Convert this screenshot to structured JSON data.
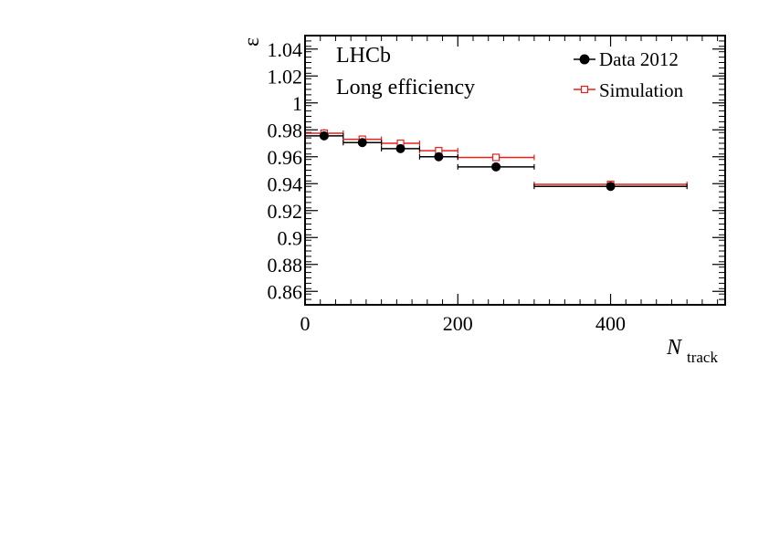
{
  "chart_data": {
    "type": "scatter",
    "annotations": [
      "LHCb",
      "Long efficiency"
    ],
    "xlabel": "N",
    "xlabel_sub": "track",
    "ylabel": "ε",
    "xlim": [
      0,
      550
    ],
    "ylim": [
      0.85,
      1.05
    ],
    "x_ticks": [
      0,
      200,
      400
    ],
    "x_tick_labels": [
      "0",
      "200",
      "400"
    ],
    "y_ticks": [
      0.86,
      0.88,
      0.9,
      0.92,
      0.94,
      0.96,
      0.98,
      1.0,
      1.02,
      1.04
    ],
    "y_tick_labels": [
      "0.86",
      "0.88",
      "0.9",
      "0.92",
      "0.94",
      "0.96",
      "0.98",
      "1",
      "1.02",
      "1.04"
    ],
    "grid": false,
    "legend_position": "top-right",
    "series": [
      {
        "name": "Data 2012",
        "color": "#000000",
        "marker": "filled-circle",
        "points": [
          {
            "x": 25,
            "xlo": 0,
            "xhi": 50,
            "y": 0.9755,
            "yerr": 0.002
          },
          {
            "x": 75,
            "xlo": 50,
            "xhi": 100,
            "y": 0.9705,
            "yerr": 0.001
          },
          {
            "x": 125,
            "xlo": 100,
            "xhi": 150,
            "y": 0.966,
            "yerr": 0.001
          },
          {
            "x": 175,
            "xlo": 150,
            "xhi": 200,
            "y": 0.96,
            "yerr": 0.001
          },
          {
            "x": 250,
            "xlo": 200,
            "xhi": 300,
            "y": 0.9525,
            "yerr": 0.001
          },
          {
            "x": 400,
            "xlo": 300,
            "xhi": 500,
            "y": 0.938,
            "yerr": 0.002
          }
        ]
      },
      {
        "name": "Simulation",
        "color": "#e8201a",
        "marker": "open-square",
        "points": [
          {
            "x": 25,
            "xlo": 0,
            "xhi": 50,
            "y": 0.9775,
            "yerr": 0.003
          },
          {
            "x": 75,
            "xlo": 50,
            "xhi": 100,
            "y": 0.973,
            "yerr": 0.002
          },
          {
            "x": 125,
            "xlo": 100,
            "xhi": 150,
            "y": 0.97,
            "yerr": 0.001
          },
          {
            "x": 175,
            "xlo": 150,
            "xhi": 200,
            "y": 0.9645,
            "yerr": 0.001
          },
          {
            "x": 250,
            "xlo": 200,
            "xhi": 300,
            "y": 0.9595,
            "yerr": 0.001
          },
          {
            "x": 400,
            "xlo": 300,
            "xhi": 500,
            "y": 0.9395,
            "yerr": 0.002
          }
        ]
      }
    ]
  }
}
